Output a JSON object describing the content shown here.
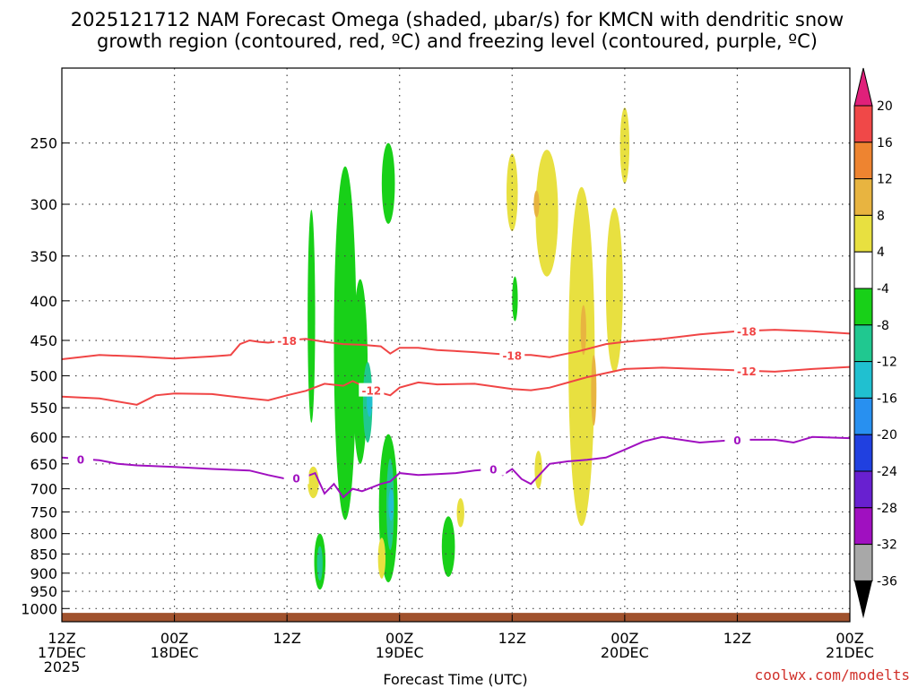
{
  "chart_data": {
    "type": "time-height cross section",
    "title_line1": "2025121712 NAM Forecast Omega (shaded, µbar/s) for KMCN with dendritic snow",
    "title_line2": "growth region (contoured, red, ºC) and freezing level (contoured, purple, ºC)",
    "xlabel": "Forecast Time (UTC)",
    "credit": "coolwx.com/modelts",
    "x_axis": {
      "unit": "hours since 2025-12-17 12Z",
      "range": [
        0,
        84
      ],
      "ticks": [
        {
          "hour": 0,
          "line1": "12Z",
          "line2": "17DEC",
          "line3": "2025"
        },
        {
          "hour": 12,
          "line1": "00Z",
          "line2": "18DEC",
          "line3": ""
        },
        {
          "hour": 24,
          "line1": "12Z",
          "line2": "",
          "line3": ""
        },
        {
          "hour": 36,
          "line1": "00Z",
          "line2": "19DEC",
          "line3": ""
        },
        {
          "hour": 48,
          "line1": "12Z",
          "line2": "",
          "line3": ""
        },
        {
          "hour": 60,
          "line1": "00Z",
          "line2": "20DEC",
          "line3": ""
        },
        {
          "hour": 72,
          "line1": "12Z",
          "line2": "",
          "line3": ""
        },
        {
          "hour": 84,
          "line1": "00Z",
          "line2": "21DEC",
          "line3": ""
        }
      ]
    },
    "y_axis": {
      "unit": "hPa",
      "range": [
        1040,
        200
      ],
      "ticks": [
        250,
        300,
        350,
        400,
        450,
        500,
        550,
        600,
        650,
        700,
        750,
        800,
        850,
        900,
        950,
        1000
      ]
    },
    "colorbar": {
      "labels": [
        "20",
        "16",
        "12",
        "8",
        "4",
        "-4",
        "-8",
        "-12",
        "-16",
        "-20",
        "-24",
        "-28",
        "-32",
        "-36"
      ],
      "segments": [
        {
          "from": 16,
          "to": 20,
          "color": "#f04848"
        },
        {
          "from": 12,
          "to": 16,
          "color": "#ee8430"
        },
        {
          "from": 8,
          "to": 12,
          "color": "#e8b440"
        },
        {
          "from": 4,
          "to": 8,
          "color": "#e8e040"
        },
        {
          "from": -4,
          "to": 4,
          "color": "#ffffff"
        },
        {
          "from": -8,
          "to": -4,
          "color": "#18d018"
        },
        {
          "from": -12,
          "to": -8,
          "color": "#20c890"
        },
        {
          "from": -16,
          "to": -12,
          "color": "#20c0d0"
        },
        {
          "from": -20,
          "to": -16,
          "color": "#2890f0"
        },
        {
          "from": -24,
          "to": -20,
          "color": "#2040e0"
        },
        {
          "from": -28,
          "to": -24,
          "color": "#6820d0"
        },
        {
          "from": -32,
          "to": -28,
          "color": "#a010c0"
        },
        {
          "from": -36,
          "to": -32,
          "color": "#a8a8a8"
        }
      ],
      "top_arrow_color": "#e0207a",
      "bottom_arrow_color": "#000000"
    },
    "contours": [
      {
        "name": "minus18",
        "label": "-18",
        "color": "#f04545",
        "hours": [
          0,
          4,
          8,
          12,
          16,
          18,
          19,
          20,
          21,
          22,
          24,
          26,
          28,
          30,
          32,
          34,
          35,
          36,
          38,
          40,
          44,
          48,
          50,
          52,
          55,
          58,
          60,
          64,
          68,
          72,
          76,
          80,
          84
        ],
        "hpa": [
          476,
          470,
          472,
          475,
          472,
          470,
          455,
          450,
          452,
          453,
          450,
          448,
          452,
          455,
          456,
          458,
          468,
          460,
          460,
          463,
          466,
          470,
          470,
          473,
          465,
          455,
          452,
          448,
          442,
          438,
          436,
          438,
          441
        ],
        "label_hours": [
          24,
          48,
          73
        ]
      },
      {
        "name": "minus12",
        "label": "-12",
        "color": "#f04545",
        "hours": [
          0,
          4,
          8,
          10,
          12,
          16,
          20,
          22,
          24,
          26,
          28,
          30,
          31,
          33,
          35,
          36,
          38,
          40,
          44,
          48,
          50,
          52,
          56,
          60,
          64,
          68,
          72,
          76,
          80,
          84
        ],
        "hpa": [
          532,
          535,
          545,
          530,
          527,
          528,
          535,
          538,
          530,
          523,
          512,
          515,
          508,
          522,
          530,
          518,
          510,
          513,
          512,
          520,
          522,
          518,
          502,
          490,
          488,
          490,
          492,
          494,
          490,
          487
        ],
        "label_hours": [
          33,
          73
        ]
      },
      {
        "name": "freezing",
        "label": "0",
        "color": "#a010c0",
        "hours": [
          0,
          4,
          6,
          8,
          12,
          16,
          20,
          22,
          24,
          26,
          27,
          28,
          29,
          30,
          31,
          32,
          34,
          35,
          36,
          38,
          40,
          42,
          44,
          46,
          47,
          48,
          49,
          50,
          52,
          54,
          56,
          58,
          60,
          62,
          64,
          68,
          72,
          76,
          78,
          80,
          84
        ],
        "hpa": [
          638,
          643,
          650,
          653,
          656,
          660,
          663,
          672,
          680,
          675,
          668,
          710,
          690,
          718,
          700,
          705,
          690,
          685,
          668,
          672,
          670,
          668,
          663,
          660,
          672,
          660,
          680,
          690,
          650,
          645,
          642,
          638,
          623,
          608,
          600,
          610,
          605,
          605,
          610,
          600,
          602
        ],
        "label_hours": [
          2,
          25,
          46,
          72
        ]
      }
    ],
    "shaded_regions": [
      {
        "value": "-4..-8",
        "color": "#18d018",
        "center_hour": 26.6,
        "hpa_top": 305,
        "hpa_bottom": 575,
        "half_width_h": 0.4
      },
      {
        "value": "-4..-8",
        "color": "#18d018",
        "center_hour": 30.2,
        "hpa_top": 268,
        "hpa_bottom": 768,
        "half_width_h": 1.2
      },
      {
        "value": "-4..-8",
        "color": "#18d018",
        "center_hour": 31.8,
        "hpa_top": 375,
        "hpa_bottom": 650,
        "half_width_h": 0.8
      },
      {
        "value": "-4..-8",
        "color": "#18d018",
        "center_hour": 34.8,
        "hpa_top": 250,
        "hpa_bottom": 318,
        "half_width_h": 0.7
      },
      {
        "value": "-4..-8",
        "color": "#18d018",
        "center_hour": 34.8,
        "hpa_top": 595,
        "hpa_bottom": 925,
        "half_width_h": 1.0
      },
      {
        "value": "-4..-8",
        "color": "#18d018",
        "center_hour": 27.5,
        "hpa_top": 800,
        "hpa_bottom": 945,
        "half_width_h": 0.6
      },
      {
        "value": "-4..-8",
        "color": "#18d018",
        "center_hour": 41.2,
        "hpa_top": 760,
        "hpa_bottom": 910,
        "half_width_h": 0.7
      },
      {
        "value": "-4..-8",
        "color": "#18d018",
        "center_hour": 48.3,
        "hpa_top": 372,
        "hpa_bottom": 425,
        "half_width_h": 0.3
      },
      {
        "value": "-8..-12",
        "color": "#20c890",
        "center_hour": 32.6,
        "hpa_top": 480,
        "hpa_bottom": 610,
        "half_width_h": 0.5
      },
      {
        "value": "-8..-12",
        "color": "#20c890",
        "center_hour": 35.0,
        "hpa_top": 640,
        "hpa_bottom": 840,
        "half_width_h": 0.4
      },
      {
        "value": "-8..-12",
        "color": "#20c890",
        "center_hour": 27.5,
        "hpa_top": 830,
        "hpa_bottom": 920,
        "half_width_h": 0.3
      },
      {
        "value": "-12..-16",
        "color": "#20c0d0",
        "center_hour": 32.8,
        "hpa_top": 515,
        "hpa_bottom": 565,
        "half_width_h": 0.3
      },
      {
        "value": "-12..-16",
        "color": "#20c0d0",
        "center_hour": 35.1,
        "hpa_top": 700,
        "hpa_bottom": 770,
        "half_width_h": 0.25
      },
      {
        "value": "4..8",
        "color": "#e8e040",
        "center_hour": 48.0,
        "hpa_top": 258,
        "hpa_bottom": 325,
        "half_width_h": 0.6
      },
      {
        "value": "4..8",
        "color": "#e8e040",
        "center_hour": 51.7,
        "hpa_top": 255,
        "hpa_bottom": 372,
        "half_width_h": 1.2
      },
      {
        "value": "4..8",
        "color": "#e8e040",
        "center_hour": 55.4,
        "hpa_top": 285,
        "hpa_bottom": 782,
        "half_width_h": 1.4
      },
      {
        "value": "4..8",
        "color": "#e8e040",
        "center_hour": 58.9,
        "hpa_top": 303,
        "hpa_bottom": 495,
        "half_width_h": 0.9
      },
      {
        "value": "4..8",
        "color": "#e8e040",
        "center_hour": 60.0,
        "hpa_top": 225,
        "hpa_bottom": 282,
        "half_width_h": 0.5
      },
      {
        "value": "4..8",
        "color": "#e8e040",
        "center_hour": 26.8,
        "hpa_top": 655,
        "hpa_bottom": 720,
        "half_width_h": 0.6
      },
      {
        "value": "4..8",
        "color": "#e8e040",
        "center_hour": 34.1,
        "hpa_top": 810,
        "hpa_bottom": 915,
        "half_width_h": 0.4
      },
      {
        "value": "4..8",
        "color": "#e8e040",
        "center_hour": 42.5,
        "hpa_top": 720,
        "hpa_bottom": 785,
        "half_width_h": 0.4
      },
      {
        "value": "4..8",
        "color": "#e8e040",
        "center_hour": 50.8,
        "hpa_top": 625,
        "hpa_bottom": 700,
        "half_width_h": 0.4
      },
      {
        "value": "8..12",
        "color": "#e8b440",
        "center_hour": 50.6,
        "hpa_top": 288,
        "hpa_bottom": 312,
        "half_width_h": 0.3
      },
      {
        "value": "8..12",
        "color": "#e8b440",
        "center_hour": 55.6,
        "hpa_top": 405,
        "hpa_bottom": 470,
        "half_width_h": 0.3
      },
      {
        "value": "8..12",
        "color": "#e8b440",
        "center_hour": 56.7,
        "hpa_top": 470,
        "hpa_bottom": 580,
        "half_width_h": 0.25
      }
    ],
    "terrain": {
      "color": "#a0522d",
      "hpa_top": 1013,
      "hpa_bottom": 1040
    }
  }
}
